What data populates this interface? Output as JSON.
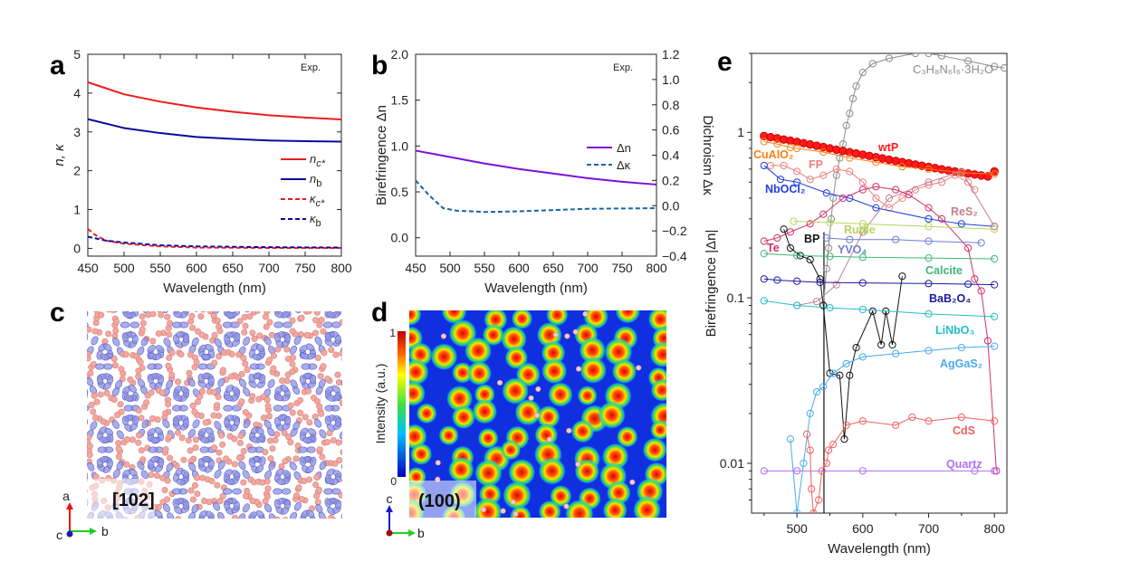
{
  "panel_letters": [
    "a",
    "b",
    "c",
    "d",
    "e"
  ],
  "chart_data": [
    {
      "panel": "a",
      "type": "line",
      "xlabel": "Wavelength (nm)",
      "ylabel": "n, κ",
      "xlim": [
        450,
        800
      ],
      "ylim": [
        -0.2,
        5
      ],
      "xticks": [
        450,
        500,
        550,
        600,
        650,
        700,
        750,
        800
      ],
      "yticks": [
        0,
        1,
        2,
        3,
        4,
        5
      ],
      "annotation": "Exp.",
      "legend_position": "right",
      "series": [
        {
          "name": "n",
          "sub": "c*",
          "color": "#ee1c1c",
          "dash": false,
          "x": [
            450,
            500,
            550,
            600,
            650,
            700,
            750,
            800
          ],
          "y": [
            4.28,
            3.97,
            3.78,
            3.63,
            3.52,
            3.43,
            3.37,
            3.32
          ]
        },
        {
          "name": "n",
          "sub": "b",
          "color": "#0a0a9e",
          "dash": false,
          "x": [
            450,
            500,
            550,
            600,
            650,
            700,
            750,
            800
          ],
          "y": [
            3.33,
            3.1,
            2.97,
            2.87,
            2.82,
            2.78,
            2.76,
            2.75
          ]
        },
        {
          "name": "κ",
          "sub": "c*",
          "color": "#ee1c1c",
          "dash": true,
          "x": [
            450,
            460,
            475,
            500,
            550,
            600,
            700,
            800
          ],
          "y": [
            0.5,
            0.35,
            0.2,
            0.12,
            0.05,
            0.02,
            0.01,
            0.01
          ]
        },
        {
          "name": "κ",
          "sub": "b",
          "color": "#0a0a9e",
          "dash": true,
          "x": [
            450,
            475,
            500,
            550,
            600,
            700,
            800
          ],
          "y": [
            0.3,
            0.2,
            0.15,
            0.08,
            0.05,
            0.03,
            0.02
          ]
        }
      ]
    },
    {
      "panel": "b",
      "type": "line",
      "xlabel": "Wavelength (nm)",
      "ylabel": "Birefringence Δn",
      "y2label": "Dichroism Δκ",
      "xlim": [
        450,
        800
      ],
      "ylim": [
        -0.2,
        2.0
      ],
      "y2lim": [
        -0.4,
        1.2
      ],
      "xticks": [
        450,
        500,
        550,
        600,
        650,
        700,
        750,
        800
      ],
      "yticks": [
        "0.0",
        "0.5",
        "1.0",
        "1.5",
        "2.0"
      ],
      "y2ticks": [
        "−0.4",
        "−0.2",
        "0.0",
        "0.2",
        "0.4",
        "0.6",
        "0.8",
        "1.0",
        "1.2"
      ],
      "annotation": "Exp.",
      "legend_position": "right",
      "series": [
        {
          "name": "Δn",
          "axis": "left",
          "color": "#7a10d8",
          "dash": false,
          "x": [
            450,
            500,
            550,
            600,
            650,
            700,
            750,
            800
          ],
          "y": [
            0.95,
            0.88,
            0.81,
            0.75,
            0.7,
            0.65,
            0.61,
            0.58
          ]
        },
        {
          "name": "Δκ",
          "axis": "right",
          "color": "#1565a8",
          "dash": true,
          "x": [
            450,
            470,
            490,
            510,
            550,
            600,
            700,
            800
          ],
          "y": [
            0.2,
            0.08,
            -0.02,
            -0.04,
            -0.05,
            -0.045,
            -0.025,
            -0.02
          ]
        }
      ]
    },
    {
      "panel": "e",
      "type": "scatter",
      "xlabel": "Wavelength (nm)",
      "ylabel": "Birefringence |Δn|",
      "xlim": [
        431,
        819
      ],
      "ylim": [
        0.005,
        3
      ],
      "yscale": "log",
      "xticks": [
        500,
        600,
        700,
        800
      ],
      "yticks": [
        "0.01",
        "0.1",
        "1"
      ],
      "series": [
        {
          "name": "C₃H₈N₆I₆·3H₂O",
          "color": "#8c8c8c",
          "x": [
            540,
            545,
            548,
            552,
            555,
            560,
            565,
            570,
            575,
            580,
            585,
            590,
            600,
            615,
            640,
            680,
            700,
            720,
            760,
            800,
            815
          ],
          "y": [
            0.09,
            0.15,
            0.2,
            0.3,
            0.4,
            0.55,
            0.7,
            0.85,
            1.1,
            1.3,
            1.6,
            1.9,
            2.3,
            2.6,
            2.8,
            3.0,
            3.0,
            2.9,
            2.7,
            2.5,
            2.45
          ]
        },
        {
          "name": "wtP",
          "color": "#ff1a1a",
          "x": [
            450,
            460,
            470,
            480,
            490,
            500,
            510,
            520,
            530,
            540,
            550,
            560,
            570,
            580,
            590,
            600,
            610,
            620,
            630,
            640,
            650,
            660,
            670,
            680,
            690,
            700,
            710,
            720,
            730,
            740,
            750,
            760,
            770,
            780,
            790,
            800
          ],
          "y": [
            0.95,
            0.935,
            0.92,
            0.905,
            0.89,
            0.875,
            0.86,
            0.845,
            0.83,
            0.815,
            0.8,
            0.785,
            0.772,
            0.759,
            0.746,
            0.733,
            0.72,
            0.708,
            0.696,
            0.684,
            0.672,
            0.661,
            0.65,
            0.639,
            0.628,
            0.618,
            0.608,
            0.598,
            0.589,
            0.58,
            0.572,
            0.564,
            0.556,
            0.549,
            0.542,
            0.58
          ]
        },
        {
          "name": "CuAlO₂",
          "color": "#ff7f0e",
          "x": [
            450,
            470,
            490,
            500,
            540,
            580,
            620,
            660,
            700,
            750,
            800
          ],
          "y": [
            0.88,
            0.85,
            0.81,
            0.8,
            0.76,
            0.7,
            0.66,
            0.62,
            0.6,
            0.57,
            0.56
          ]
        },
        {
          "name": "FP",
          "color": "#f08080",
          "x": [
            460,
            480,
            500,
            520,
            540,
            560,
            580,
            600,
            620,
            640,
            660,
            680,
            700,
            720,
            740,
            760,
            770
          ],
          "y": [
            0.63,
            0.63,
            0.58,
            0.52,
            0.55,
            0.6,
            0.58,
            0.5,
            0.4,
            0.35,
            0.4,
            0.45,
            0.48,
            0.5,
            0.55,
            0.5,
            0.45
          ]
        },
        {
          "name": "NbOCl₂",
          "color": "#1f3fe0",
          "x": [
            450,
            475,
            500,
            545,
            580,
            620,
            700,
            750,
            800
          ],
          "y": [
            0.63,
            0.52,
            0.5,
            0.43,
            0.4,
            0.35,
            0.3,
            0.28,
            0.27
          ]
        },
        {
          "name": "ReS₂",
          "color": "#c08090",
          "x": [
            500,
            530,
            560,
            600,
            640,
            700,
            750,
            800
          ],
          "y": [
            0.09,
            0.095,
            0.12,
            0.25,
            0.4,
            0.5,
            0.58,
            0.27
          ]
        },
        {
          "name": "Te",
          "color": "#d0306a",
          "x": [
            450,
            470,
            490,
            520,
            540,
            570,
            600,
            620,
            650,
            670,
            700,
            720,
            760,
            770,
            780,
            790,
            803
          ],
          "y": [
            0.22,
            0.23,
            0.25,
            0.28,
            0.32,
            0.4,
            0.45,
            0.47,
            0.45,
            0.42,
            0.35,
            0.3,
            0.2,
            0.13,
            0.11,
            0.055,
            0.009
          ]
        },
        {
          "name": "BP",
          "color": "#111111",
          "x": [
            480,
            490,
            505,
            520,
            535,
            540,
            550,
            565,
            572,
            580,
            590,
            615,
            628,
            635,
            645,
            660
          ],
          "y": [
            0.26,
            0.2,
            0.18,
            0.17,
            0.13,
            0.09,
            0.035,
            0.034,
            0.014,
            0.034,
            0.05,
            0.083,
            0.052,
            0.083,
            0.052,
            0.135
          ]
        },
        {
          "name": "Rutile",
          "color": "#b5d65a",
          "x": [
            495,
            550,
            600,
            700,
            800
          ],
          "y": [
            0.29,
            0.285,
            0.28,
            0.27,
            0.26
          ]
        },
        {
          "name": "YVO₄",
          "color": "#6a7ed0",
          "x": [
            545,
            580,
            650,
            700,
            780
          ],
          "y": [
            0.23,
            0.225,
            0.225,
            0.22,
            0.215
          ]
        },
        {
          "name": "Calcite",
          "color": "#3cb878",
          "x": [
            450,
            500,
            550,
            600,
            700,
            800
          ],
          "y": [
            0.185,
            0.18,
            0.178,
            0.176,
            0.174,
            0.172
          ]
        },
        {
          "name": "BaB₂O₄",
          "color": "#1a1aa0",
          "x": [
            450,
            470,
            500,
            535,
            600,
            700,
            760,
            800
          ],
          "y": [
            0.13,
            0.128,
            0.126,
            0.124,
            0.123,
            0.122,
            0.121,
            0.12
          ]
        },
        {
          "name": "LiNbO₃",
          "color": "#20c0c8",
          "x": [
            450,
            500,
            550,
            600,
            700,
            800
          ],
          "y": [
            0.096,
            0.09,
            0.087,
            0.085,
            0.08,
            0.077
          ]
        },
        {
          "name": "AgGaS₂",
          "color": "#4aaaf0",
          "x": [
            490,
            500,
            510,
            520,
            530,
            540,
            555,
            575,
            600,
            650,
            700,
            750,
            800
          ],
          "y": [
            0.014,
            0.005,
            0.01,
            0.02,
            0.027,
            0.029,
            0.035,
            0.04,
            0.044,
            0.046,
            0.048,
            0.05,
            0.051
          ]
        },
        {
          "name": "CdS",
          "color": "#f06060",
          "x": [
            515,
            520,
            522,
            525,
            533,
            538,
            545,
            548,
            555,
            575,
            600,
            650,
            675,
            700,
            750,
            800
          ],
          "y": [
            0.015,
            0.012,
            0.007,
            0.005,
            0.006,
            0.009,
            0.01,
            0.012,
            0.013,
            0.017,
            0.018,
            0.017,
            0.019,
            0.018,
            0.019,
            0.018
          ]
        },
        {
          "name": "Quartz",
          "color": "#b070f0",
          "x": [
            450,
            500,
            600,
            770,
            800
          ],
          "y": [
            0.009,
            0.009,
            0.009,
            0.009,
            0.009
          ]
        }
      ]
    }
  ],
  "panel_c": {
    "label": "[102]",
    "axes": [
      "a",
      "b",
      "c"
    ]
  },
  "panel_d": {
    "label": "(100)",
    "axes": [
      "c",
      "b"
    ],
    "colorbar": {
      "label": "Intensity (a.u.)",
      "max": "1",
      "min": "0"
    }
  }
}
